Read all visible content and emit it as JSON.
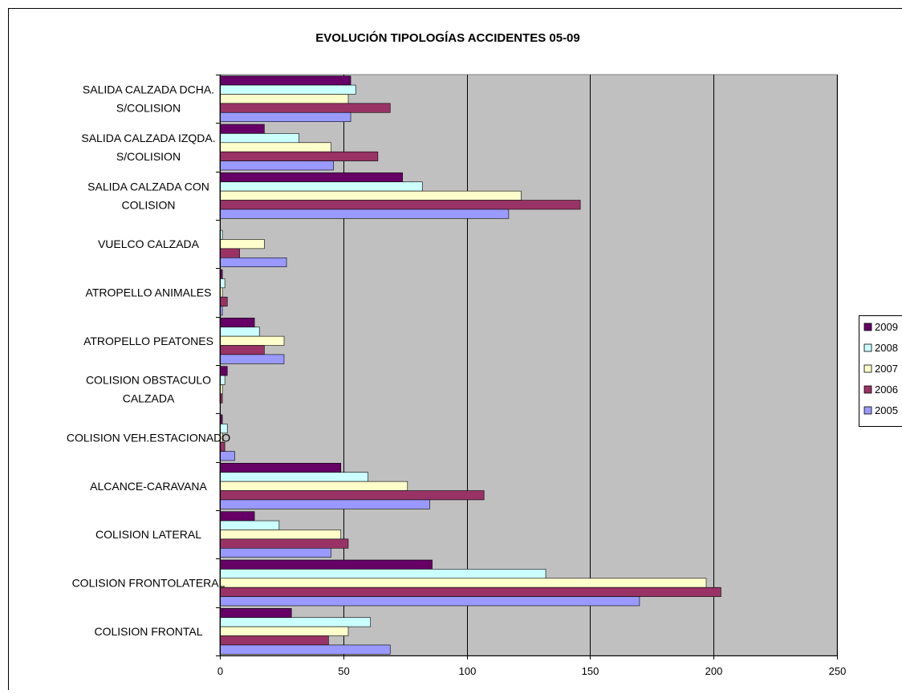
{
  "chart_data": {
    "type": "bar",
    "orientation": "horizontal",
    "title": "EVOLUCIÓN TIPOLOGÍAS ACCIDENTES 05-09",
    "xlabel": "",
    "ylabel": "",
    "xlim": [
      0,
      250
    ],
    "xticks": [
      0,
      50,
      100,
      150,
      200,
      250
    ],
    "grid": true,
    "legend_position": "right",
    "categories": [
      "COLISION FRONTAL",
      "COLISION FRONTOLATERAL",
      "COLISION LATERAL",
      "ALCANCE-CARAVANA",
      "COLISION VEH.ESTACIONADO",
      "COLISION OBSTACULO CALZADA",
      "ATROPELLO PEATONES",
      "ATROPELLO ANIMALES",
      "VUELCO CALZADA",
      "SALIDA CALZADA CON COLISION",
      "SALIDA CALZADA IZQDA. S/COLISION",
      "SALIDA CALZADA DCHA. S/COLISION"
    ],
    "category_lines": [
      [
        "COLISION FRONTAL"
      ],
      [
        "COLISION FRONTOLATERAL"
      ],
      [
        "COLISION LATERAL"
      ],
      [
        "ALCANCE-CARAVANA"
      ],
      [
        "COLISION VEH.ESTACIONADO"
      ],
      [
        "COLISION OBSTACULO",
        "CALZADA"
      ],
      [
        "ATROPELLO PEATONES"
      ],
      [
        "ATROPELLO ANIMALES"
      ],
      [
        "VUELCO CALZADA"
      ],
      [
        "SALIDA CALZADA CON",
        "COLISION"
      ],
      [
        "SALIDA CALZADA IZQDA.",
        "S/COLISION"
      ],
      [
        "SALIDA CALZADA DCHA.",
        "S/COLISION"
      ]
    ],
    "series": [
      {
        "name": "2009",
        "color": "#660066",
        "values": [
          29,
          86,
          14,
          49,
          1,
          3,
          14,
          1,
          0,
          74,
          18,
          53
        ]
      },
      {
        "name": "2008",
        "color": "#ccffff",
        "values": [
          61,
          132,
          24,
          60,
          3,
          2,
          16,
          2,
          1,
          82,
          32,
          55
        ]
      },
      {
        "name": "2007",
        "color": "#ffffcc",
        "values": [
          52,
          197,
          49,
          76,
          1,
          1,
          26,
          1,
          18,
          122,
          45,
          52
        ]
      },
      {
        "name": "2006",
        "color": "#993366",
        "values": [
          44,
          203,
          52,
          107,
          2,
          1,
          18,
          3,
          8,
          146,
          64,
          69
        ]
      },
      {
        "name": "2005",
        "color": "#9999ff",
        "values": [
          69,
          170,
          45,
          85,
          6,
          0,
          26,
          1,
          27,
          117,
          46,
          53
        ]
      }
    ],
    "plot_background": "#c0c0c0"
  }
}
